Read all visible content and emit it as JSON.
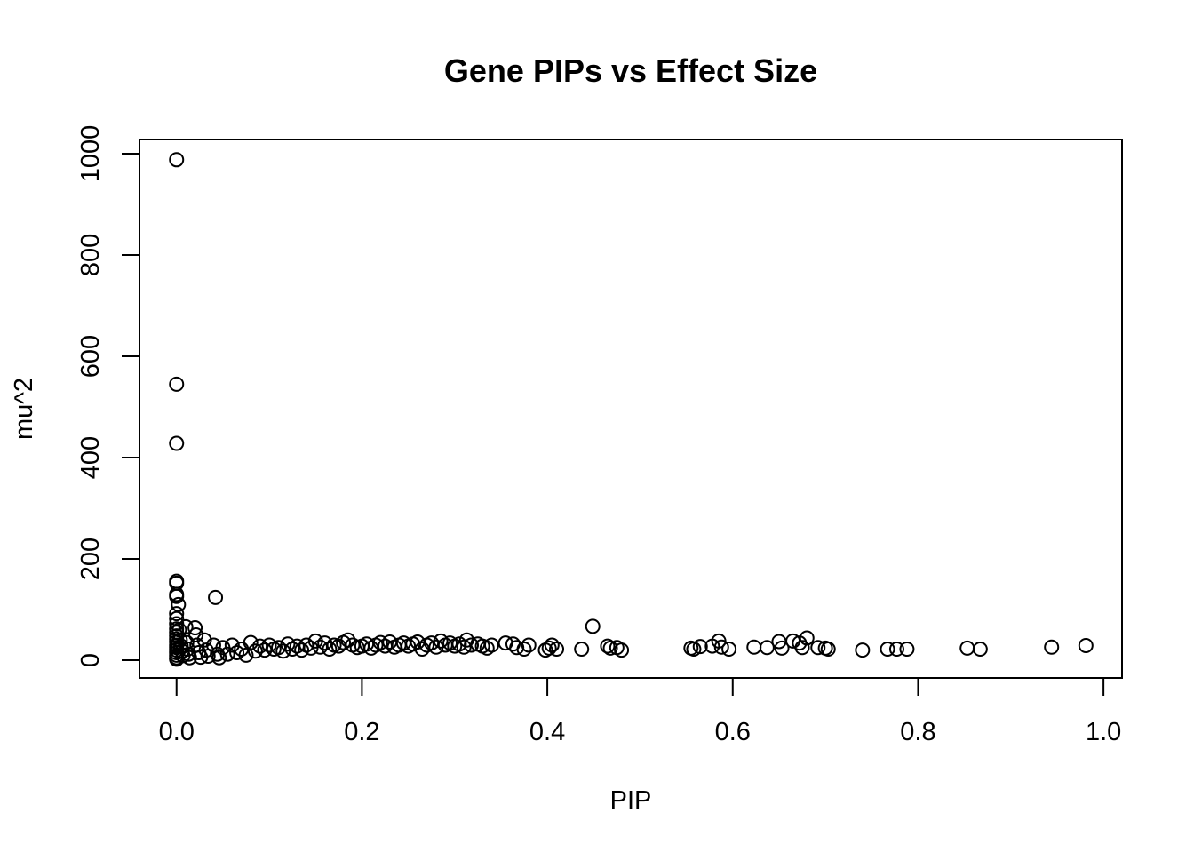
{
  "chart_data": {
    "type": "scatter",
    "title": "Gene PIPs vs Effect Size",
    "xlabel": "PIP",
    "ylabel": "mu^2",
    "xlim": [
      -0.04,
      1.02
    ],
    "ylim": [
      -35,
      1028
    ],
    "x_ticks": [
      0,
      0.2,
      0.4,
      0.6,
      0.8,
      1.0
    ],
    "x_tick_labels": [
      "0.0",
      "0.2",
      "0.4",
      "0.6",
      "0.8",
      "1.0"
    ],
    "y_ticks": [
      0,
      200,
      400,
      600,
      800,
      1000
    ],
    "y_tick_labels": [
      "0",
      "200",
      "400",
      "600",
      "800",
      "1000"
    ],
    "grid": false,
    "legend": "none",
    "marker": "open-circle",
    "color": "#000000",
    "series": [
      {
        "points": [
          [
            0.0,
            988
          ],
          [
            0.0,
            545
          ],
          [
            0.0,
            428
          ],
          [
            0.0,
            156
          ],
          [
            0.0,
            152
          ],
          [
            0.0,
            130
          ],
          [
            0.0,
            126
          ],
          [
            0.002,
            110
          ],
          [
            0.0,
            92
          ],
          [
            0.0,
            82
          ],
          [
            0.0,
            72
          ],
          [
            0.0,
            62
          ],
          [
            0.0,
            55
          ],
          [
            0.0,
            48
          ],
          [
            0.0,
            42
          ],
          [
            0.0,
            36
          ],
          [
            0.0,
            30
          ],
          [
            0.0,
            25
          ],
          [
            0.0,
            20
          ],
          [
            0.0,
            15
          ],
          [
            0.0,
            10
          ],
          [
            0.0,
            5
          ],
          [
            0.0,
            2
          ],
          [
            0.003,
            60
          ],
          [
            0.004,
            40
          ],
          [
            0.005,
            28
          ],
          [
            0.006,
            18
          ],
          [
            0.007,
            9
          ],
          [
            0.01,
            66
          ],
          [
            0.011,
            35
          ],
          [
            0.012,
            22
          ],
          [
            0.013,
            12
          ],
          [
            0.014,
            5
          ],
          [
            0.02,
            64
          ],
          [
            0.021,
            50
          ],
          [
            0.022,
            30
          ],
          [
            0.024,
            15
          ],
          [
            0.026,
            6
          ],
          [
            0.03,
            40
          ],
          [
            0.032,
            20
          ],
          [
            0.034,
            8
          ],
          [
            0.04,
            30
          ],
          [
            0.042,
            124
          ],
          [
            0.044,
            12
          ],
          [
            0.046,
            5
          ],
          [
            0.05,
            25
          ],
          [
            0.055,
            12
          ],
          [
            0.06,
            30
          ],
          [
            0.065,
            15
          ],
          [
            0.07,
            22
          ],
          [
            0.075,
            10
          ],
          [
            0.08,
            35
          ],
          [
            0.085,
            18
          ],
          [
            0.09,
            28
          ],
          [
            0.095,
            20
          ],
          [
            0.1,
            30
          ],
          [
            0.105,
            22
          ],
          [
            0.11,
            25
          ],
          [
            0.115,
            18
          ],
          [
            0.12,
            32
          ],
          [
            0.125,
            22
          ],
          [
            0.13,
            28
          ],
          [
            0.135,
            20
          ],
          [
            0.14,
            30
          ],
          [
            0.145,
            24
          ],
          [
            0.15,
            38
          ],
          [
            0.155,
            26
          ],
          [
            0.16,
            34
          ],
          [
            0.165,
            22
          ],
          [
            0.17,
            30
          ],
          [
            0.175,
            28
          ],
          [
            0.18,
            35
          ],
          [
            0.185,
            40
          ],
          [
            0.19,
            30
          ],
          [
            0.195,
            25
          ],
          [
            0.2,
            28
          ],
          [
            0.205,
            32
          ],
          [
            0.21,
            24
          ],
          [
            0.215,
            30
          ],
          [
            0.22,
            35
          ],
          [
            0.225,
            28
          ],
          [
            0.23,
            36
          ],
          [
            0.235,
            26
          ],
          [
            0.24,
            30
          ],
          [
            0.245,
            34
          ],
          [
            0.25,
            28
          ],
          [
            0.255,
            32
          ],
          [
            0.26,
            36
          ],
          [
            0.265,
            22
          ],
          [
            0.27,
            30
          ],
          [
            0.275,
            34
          ],
          [
            0.28,
            26
          ],
          [
            0.285,
            38
          ],
          [
            0.29,
            30
          ],
          [
            0.295,
            34
          ],
          [
            0.3,
            28
          ],
          [
            0.305,
            32
          ],
          [
            0.31,
            26
          ],
          [
            0.313,
            40
          ],
          [
            0.318,
            30
          ],
          [
            0.325,
            32
          ],
          [
            0.33,
            28
          ],
          [
            0.335,
            24
          ],
          [
            0.34,
            30
          ],
          [
            0.355,
            34
          ],
          [
            0.363,
            32
          ],
          [
            0.367,
            25
          ],
          [
            0.375,
            22
          ],
          [
            0.38,
            30
          ],
          [
            0.398,
            20
          ],
          [
            0.402,
            24
          ],
          [
            0.405,
            30
          ],
          [
            0.41,
            22
          ],
          [
            0.437,
            22
          ],
          [
            0.449,
            67
          ],
          [
            0.465,
            28
          ],
          [
            0.468,
            24
          ],
          [
            0.475,
            25
          ],
          [
            0.48,
            20
          ],
          [
            0.555,
            24
          ],
          [
            0.558,
            22
          ],
          [
            0.565,
            27
          ],
          [
            0.578,
            28
          ],
          [
            0.585,
            38
          ],
          [
            0.588,
            26
          ],
          [
            0.596,
            22
          ],
          [
            0.623,
            26
          ],
          [
            0.637,
            25
          ],
          [
            0.65,
            37
          ],
          [
            0.653,
            24
          ],
          [
            0.665,
            38
          ],
          [
            0.672,
            34
          ],
          [
            0.675,
            25
          ],
          [
            0.68,
            44
          ],
          [
            0.692,
            25
          ],
          [
            0.7,
            24
          ],
          [
            0.703,
            22
          ],
          [
            0.74,
            20
          ],
          [
            0.767,
            22
          ],
          [
            0.777,
            22
          ],
          [
            0.788,
            22
          ],
          [
            0.853,
            24
          ],
          [
            0.867,
            22
          ],
          [
            0.944,
            26
          ],
          [
            0.981,
            29
          ]
        ]
      }
    ]
  }
}
